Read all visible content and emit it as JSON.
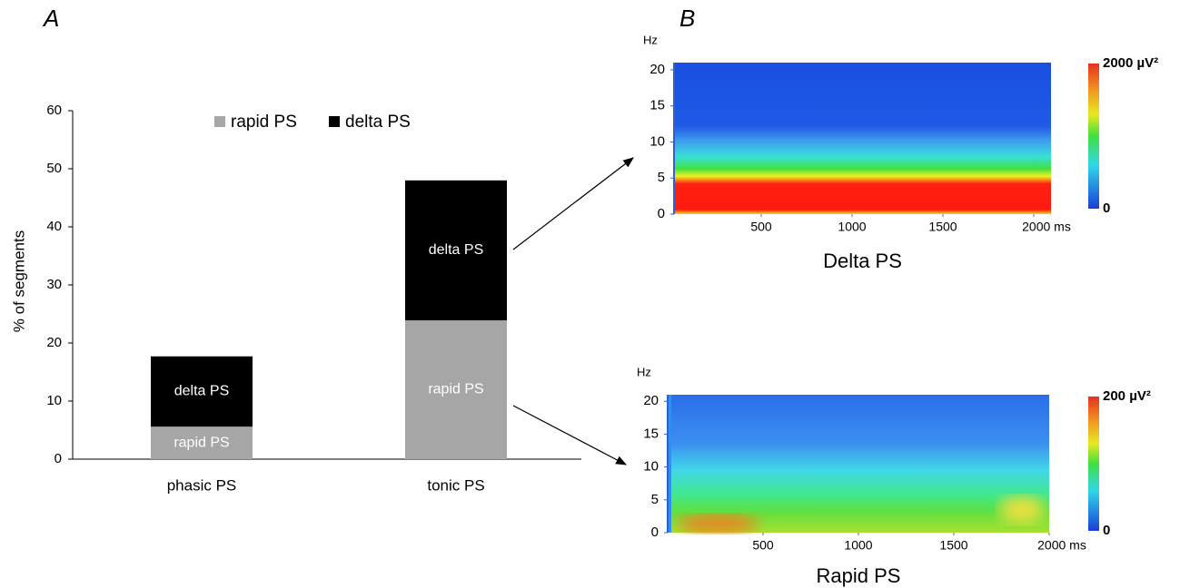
{
  "chart_data": [
    {
      "type": "bar",
      "stacked": true,
      "panel_label": "A",
      "ylabel": "% of segments",
      "categories": [
        "phasic PS",
        "tonic PS"
      ],
      "series": [
        {
          "name": "rapid PS",
          "color": "#a6a6a6",
          "values": [
            5.6,
            23.9
          ]
        },
        {
          "name": "delta PS",
          "color": "#000000",
          "values": [
            12.1,
            24.1
          ]
        }
      ],
      "ylim": [
        0,
        60
      ],
      "yticks": [
        0,
        10,
        20,
        30,
        40,
        50,
        60
      ],
      "legend": "top"
    },
    {
      "type": "spectrogram",
      "panel_label": "B",
      "title": "Delta PS",
      "yunit": "Hz",
      "ylim": [
        0,
        21
      ],
      "yticks": [
        0,
        5,
        10,
        15,
        20
      ],
      "xlim": [
        20,
        2095
      ],
      "xticks": [
        500,
        1000,
        1500,
        {
          "value": 2000,
          "label": "2000 ms"
        }
      ],
      "colorbar_ticks": [
        {
          "value": 2000,
          "label": "2000 µV²"
        },
        0
      ]
    },
    {
      "type": "spectrogram",
      "title": "Rapid PS",
      "yunit": "Hz",
      "ylim": [
        0,
        21
      ],
      "yticks": [
        0,
        5,
        10,
        15,
        20
      ],
      "xlim": [
        0,
        2000
      ],
      "xticks": [
        500,
        1000,
        1500,
        {
          "value": 2000,
          "label": "2000 ms"
        }
      ],
      "colorbar_ticks": [
        {
          "value": 200,
          "label": "200 µV²"
        },
        0
      ]
    }
  ]
}
